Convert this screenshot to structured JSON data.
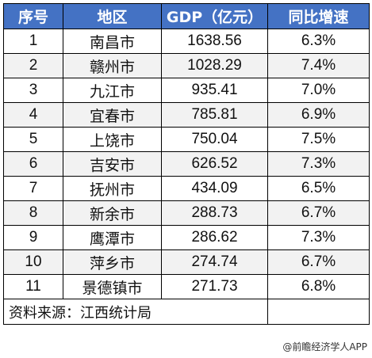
{
  "table": {
    "headers": [
      "序号",
      "地区",
      "GDP（亿元）",
      "同比增速"
    ],
    "rows": [
      {
        "index": "1",
        "region": "南昌市",
        "gdp": "1638.56",
        "growth": "6.3%"
      },
      {
        "index": "2",
        "region": "赣州市",
        "gdp": "1028.29",
        "growth": "7.4%"
      },
      {
        "index": "3",
        "region": "九江市",
        "gdp": "935.41",
        "growth": "7.0%"
      },
      {
        "index": "4",
        "region": "宜春市",
        "gdp": "785.81",
        "growth": "6.9%"
      },
      {
        "index": "5",
        "region": "上饶市",
        "gdp": "750.04",
        "growth": "7.5%"
      },
      {
        "index": "6",
        "region": "吉安市",
        "gdp": "626.52",
        "growth": "7.3%"
      },
      {
        "index": "7",
        "region": "抚州市",
        "gdp": "434.09",
        "growth": "6.5%"
      },
      {
        "index": "8",
        "region": "新余市",
        "gdp": "288.73",
        "growth": "6.7%"
      },
      {
        "index": "9",
        "region": "鹰潭市",
        "gdp": "286.62",
        "growth": "7.3%"
      },
      {
        "index": "10",
        "region": "萍乡市",
        "gdp": "274.74",
        "growth": "6.7%"
      },
      {
        "index": "11",
        "region": "景德镇市",
        "gdp": "271.73",
        "growth": "6.8%"
      }
    ],
    "source": "资料来源：江西统计局"
  },
  "watermark": "@前瞻经济学人APP",
  "colors": {
    "header_bg": "#4472c4",
    "header_text": "#ffffff",
    "stripe": "#f2f2f2",
    "border": "#000000"
  }
}
